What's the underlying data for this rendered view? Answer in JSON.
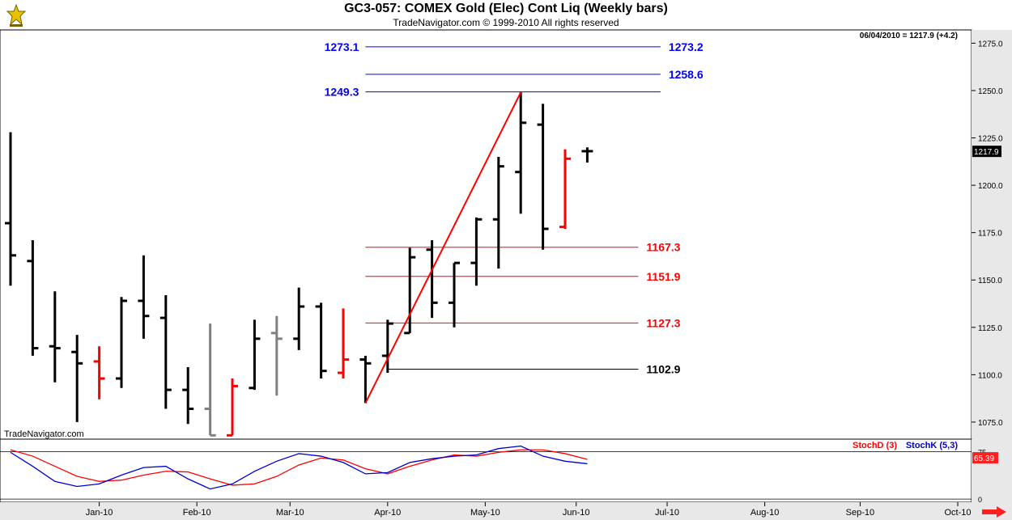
{
  "header": {
    "title": "GC3-057:  COMEX Gold (Elec) Cont Liq  (Weekly bars)",
    "subtitle": "TradeNavigator.com © 1999-2010 All rights reserved"
  },
  "watermark": "TradeNavigator.com",
  "last_info": "06/04/2010 = 1217.9 (+4.2)",
  "last_price_tag": "1217.9",
  "stoch_last_tag": "65.39",
  "colors": {
    "up_bar": "#000000",
    "down_bar": "#ff0000",
    "neutral_bar": "#808080",
    "target_line": "#0000ff",
    "retrace_line": "#ff0000",
    "swing_line": "#ff0000",
    "stoch_d": "#ff0000",
    "stoch_k": "#0000cc",
    "axis_bg": "#e8e8e8"
  },
  "chart_data": [
    {
      "type": "ohlc",
      "title": "GC3-057:  COMEX Gold (Elec) Cont Liq  (Weekly bars)",
      "x_ticks": [
        "Jan-10",
        "Feb-10",
        "Mar-10",
        "Apr-10",
        "May-10",
        "Jun-10",
        "Jul-10",
        "Aug-10",
        "Sep-10",
        "Oct-10"
      ],
      "x_tick_week": [
        4,
        8.4,
        12.6,
        17,
        21.4,
        25.5,
        29.6,
        34,
        38.3,
        42.7
      ],
      "y_ticks": [
        1075.0,
        1100.0,
        1125.0,
        1150.0,
        1175.0,
        1200.0,
        1225.0,
        1250.0,
        1275.0
      ],
      "ylim": [
        1066.0,
        1282.0
      ],
      "bars": [
        {
          "w": 0,
          "o": 1180,
          "h": 1228,
          "l": 1147,
          "c": 1163,
          "color": "black"
        },
        {
          "w": 1,
          "o": 1160,
          "h": 1171,
          "l": 1110,
          "c": 1114,
          "color": "black"
        },
        {
          "w": 2,
          "o": 1115,
          "h": 1144,
          "l": 1096,
          "c": 1114,
          "color": "black"
        },
        {
          "w": 3,
          "o": 1112,
          "h": 1121,
          "l": 1075,
          "c": 1106,
          "color": "black"
        },
        {
          "w": 4,
          "o": 1107,
          "h": 1115,
          "l": 1087,
          "c": 1098,
          "color": "red"
        },
        {
          "w": 5,
          "o": 1098,
          "h": 1141,
          "l": 1093,
          "c": 1139,
          "color": "black"
        },
        {
          "w": 6,
          "o": 1139,
          "h": 1163,
          "l": 1119,
          "c": 1131,
          "color": "black"
        },
        {
          "w": 7,
          "o": 1130,
          "h": 1142,
          "l": 1082,
          "c": 1092,
          "color": "black"
        },
        {
          "w": 8,
          "o": 1092,
          "h": 1104,
          "l": 1074,
          "c": 1082,
          "color": "black"
        },
        {
          "w": 9,
          "o": 1082,
          "h": 1127,
          "l": 1068,
          "c": 1068,
          "color": "gray"
        },
        {
          "w": 10,
          "o": 1068,
          "h": 1098,
          "l": 1068,
          "c": 1094,
          "color": "red"
        },
        {
          "w": 11,
          "o": 1093,
          "h": 1129,
          "l": 1092,
          "c": 1119,
          "color": "black"
        },
        {
          "w": 12,
          "o": 1122,
          "h": 1131,
          "l": 1089,
          "c": 1119,
          "color": "gray"
        },
        {
          "w": 13,
          "o": 1119,
          "h": 1146,
          "l": 1113,
          "c": 1136,
          "color": "black"
        },
        {
          "w": 14,
          "o": 1136,
          "h": 1138,
          "l": 1098,
          "c": 1102,
          "color": "black"
        },
        {
          "w": 15,
          "o": 1101,
          "h": 1135,
          "l": 1098,
          "c": 1108,
          "color": "red"
        },
        {
          "w": 16,
          "o": 1108,
          "h": 1110,
          "l": 1085,
          "c": 1106,
          "color": "black"
        },
        {
          "w": 17,
          "o": 1110,
          "h": 1129,
          "l": 1101,
          "c": 1127,
          "color": "black"
        },
        {
          "w": 18,
          "o": 1122,
          "h": 1167,
          "l": 1122,
          "c": 1162,
          "color": "black"
        },
        {
          "w": 19,
          "o": 1166,
          "h": 1171,
          "l": 1130,
          "c": 1138,
          "color": "black"
        },
        {
          "w": 20,
          "o": 1138,
          "h": 1159,
          "l": 1125,
          "c": 1159,
          "color": "black"
        },
        {
          "w": 21,
          "o": 1159,
          "h": 1183,
          "l": 1147,
          "c": 1182,
          "color": "black"
        },
        {
          "w": 22,
          "o": 1182,
          "h": 1215,
          "l": 1156,
          "c": 1210,
          "color": "black"
        },
        {
          "w": 23,
          "o": 1207,
          "h": 1249,
          "l": 1185,
          "c": 1233,
          "color": "black"
        },
        {
          "w": 24,
          "o": 1232,
          "h": 1243,
          "l": 1166,
          "c": 1177,
          "color": "black"
        },
        {
          "w": 25,
          "o": 1178,
          "h": 1219,
          "l": 1177,
          "c": 1214,
          "color": "red"
        },
        {
          "w": 26,
          "o": 1218,
          "h": 1220,
          "l": 1212,
          "c": 1218,
          "color": "black"
        }
      ],
      "swing_line": [
        {
          "w": 16,
          "v": 1085
        },
        {
          "w": 23,
          "v": 1249
        }
      ],
      "target_lines": [
        {
          "value": 1273.1,
          "label_left": "1273.1",
          "label_right": "1273.2",
          "w_from": 16,
          "w_to": 29.3
        },
        {
          "value": 1258.6,
          "label_left": "",
          "label_right": "1258.6",
          "w_from": 16,
          "w_to": 29.3
        },
        {
          "value": 1249.3,
          "label_left": "1249.3",
          "label_right": "",
          "w_from": 16,
          "w_to": 29.3
        }
      ],
      "retracement_lines": [
        {
          "value": 1167.3,
          "label": "1167.3",
          "color": "red",
          "w_from": 16,
          "w_to": 28.3
        },
        {
          "value": 1151.9,
          "label": "1151.9",
          "color": "red",
          "w_from": 16,
          "w_to": 28.3
        },
        {
          "value": 1127.3,
          "label": "1127.3",
          "color": "red",
          "w_from": 16,
          "w_to": 28.3
        },
        {
          "value": 1102.9,
          "label": "1102.9",
          "color": "black",
          "w_from": 17,
          "w_to": 28.3
        }
      ]
    },
    {
      "type": "line",
      "title": "",
      "legend": [
        "StochD (3)",
        "StochK (5,3)"
      ],
      "y_ticks": [
        0,
        75
      ],
      "ylim": [
        -5,
        95
      ],
      "series": [
        {
          "name": "StochD (3)",
          "color": "red",
          "w": [
            0,
            1,
            2,
            3,
            4,
            5,
            6,
            7,
            8,
            9,
            10,
            11,
            12,
            13,
            14,
            15,
            16,
            17,
            18,
            19,
            20,
            21,
            22,
            23,
            24,
            25,
            26
          ],
          "values": [
            78,
            68,
            52,
            36,
            28,
            30,
            38,
            44,
            43,
            32,
            22,
            24,
            36,
            54,
            65,
            62,
            48,
            40,
            52,
            62,
            70,
            68,
            74,
            78,
            78,
            72,
            63
          ]
        },
        {
          "name": "StochK (5,3)",
          "color": "blue",
          "w": [
            0,
            1,
            2,
            3,
            4,
            5,
            6,
            7,
            8,
            9,
            10,
            11,
            12,
            13,
            14,
            15,
            16,
            17,
            18,
            19,
            20,
            21,
            22,
            23,
            24,
            25,
            26
          ],
          "values": [
            74,
            52,
            28,
            20,
            24,
            38,
            50,
            52,
            32,
            16,
            24,
            44,
            60,
            72,
            68,
            58,
            40,
            42,
            58,
            64,
            68,
            70,
            80,
            84,
            68,
            60,
            56
          ]
        }
      ]
    }
  ]
}
